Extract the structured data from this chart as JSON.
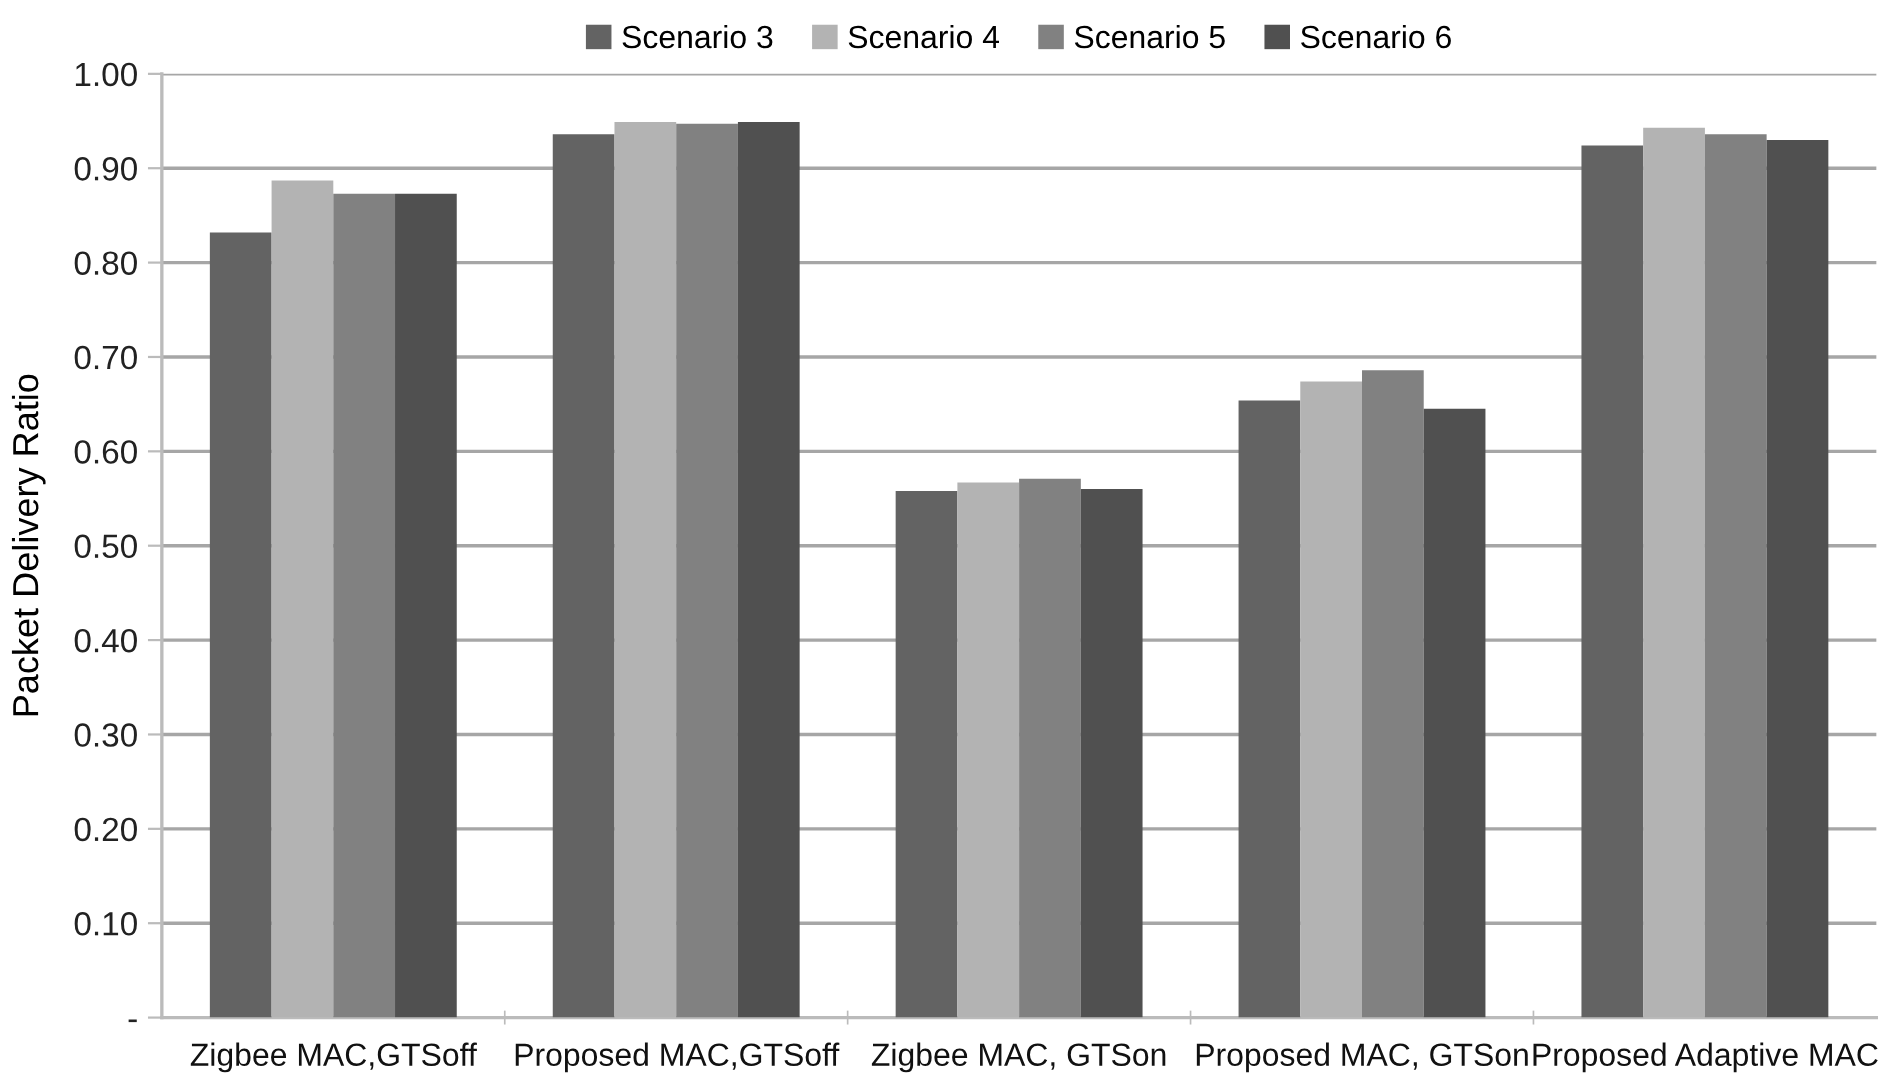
{
  "chart_data": {
    "type": "bar",
    "ylabel": "Packet Delivery Ratio",
    "categories": [
      "Zigbee MAC,GTSoff",
      "Proposed MAC,GTSoff",
      "Zigbee MAC, GTSon",
      "Proposed MAC, GTSon",
      "Proposed Adaptive MAC"
    ],
    "series": [
      {
        "name": "Scenario 3",
        "color": "#636363",
        "values": [
          0.832,
          0.936,
          0.558,
          0.654,
          0.924
        ]
      },
      {
        "name": "Scenario 4",
        "color": "#b3b3b3",
        "values": [
          0.887,
          0.949,
          0.567,
          0.674,
          0.943
        ]
      },
      {
        "name": "Scenario 5",
        "color": "#818181",
        "values": [
          0.873,
          0.947,
          0.571,
          0.686,
          0.936
        ]
      },
      {
        "name": "Scenario 6",
        "color": "#505050",
        "values": [
          0.873,
          0.949,
          0.56,
          0.645,
          0.93
        ]
      }
    ],
    "ylim": [
      0,
      1.0
    ],
    "yticks": [
      {
        "value": 0,
        "label": "-"
      },
      {
        "value": 0.1,
        "label": "0.10"
      },
      {
        "value": 0.2,
        "label": "0.20"
      },
      {
        "value": 0.3,
        "label": "0.30"
      },
      {
        "value": 0.4,
        "label": "0.40"
      },
      {
        "value": 0.5,
        "label": "0.50"
      },
      {
        "value": 0.6,
        "label": "0.60"
      },
      {
        "value": 0.7,
        "label": "0.70"
      },
      {
        "value": 0.8,
        "label": "0.80"
      },
      {
        "value": 0.9,
        "label": "0.90"
      },
      {
        "value": 1.0,
        "label": "1.00"
      }
    ],
    "grid": "y",
    "legend": "top"
  }
}
